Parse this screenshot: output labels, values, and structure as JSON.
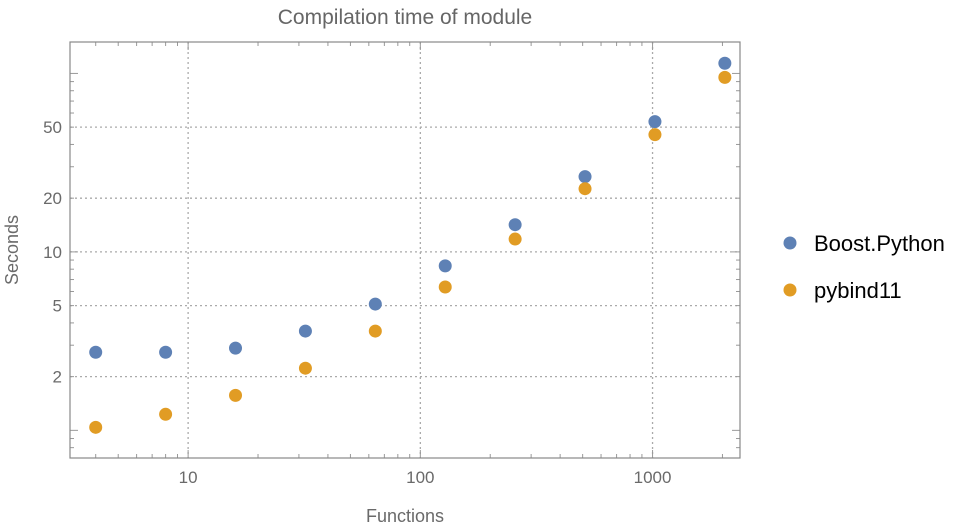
{
  "chart_data": {
    "type": "scatter",
    "title": "Compilation time of module",
    "xlabel": "Functions",
    "ylabel": "Seconds",
    "x_scale": "log",
    "y_scale": "log",
    "xlim": [
      3.1,
      2380
    ],
    "ylim": [
      0.7,
      150
    ],
    "grid": true,
    "legend_position": "right",
    "x_ticks": [
      10,
      100,
      1000
    ],
    "x_tick_labels": [
      "10",
      "100",
      "1000"
    ],
    "y_ticks": [
      2,
      5,
      10,
      20,
      50
    ],
    "y_tick_labels": [
      "2",
      "5",
      "10",
      "20",
      "50"
    ],
    "x": [
      4,
      8,
      16,
      32,
      64,
      128,
      256,
      512,
      1024,
      2048
    ],
    "series": [
      {
        "name": "Boost.Python",
        "color": "#5E81B5",
        "values": [
          2.74,
          2.74,
          2.89,
          3.6,
          5.1,
          8.35,
          14.2,
          26.4,
          53.7,
          114
        ]
      },
      {
        "name": "pybind11",
        "color": "#E19C24",
        "values": [
          1.04,
          1.23,
          1.57,
          2.23,
          3.6,
          6.36,
          11.8,
          22.6,
          45.4,
          95
        ]
      }
    ]
  }
}
